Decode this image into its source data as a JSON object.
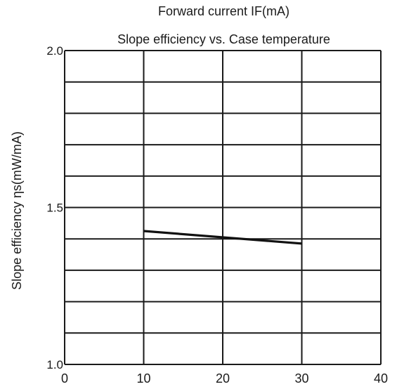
{
  "header": {
    "caption": "Forward current  IF(mA)"
  },
  "chart_data": {
    "type": "line",
    "title": "Slope efficiency vs. Case temperature",
    "xlabel": "",
    "ylabel": "Slope efficiency  ηs(mW/mA)",
    "xlim": [
      0,
      40
    ],
    "ylim": [
      1.0,
      2.0
    ],
    "x_ticks": [
      0,
      10,
      20,
      30,
      40
    ],
    "y_ticks": [
      1.0,
      1.5,
      2.0
    ],
    "x_tick_labels": [
      "0",
      "10",
      "20",
      "30",
      "40"
    ],
    "y_tick_labels": [
      "1.0",
      "1.5",
      "2.0"
    ],
    "y_gridlines": [
      1.0,
      1.1,
      1.2,
      1.3,
      1.4,
      1.5,
      1.6,
      1.7,
      1.8,
      1.9,
      2.0
    ],
    "x_gridlines": [
      0,
      10,
      20,
      30,
      40
    ],
    "grid": true,
    "series": [
      {
        "x": [
          10,
          30
        ],
        "values": [
          1.425,
          1.385
        ],
        "color": "#111111"
      }
    ]
  }
}
